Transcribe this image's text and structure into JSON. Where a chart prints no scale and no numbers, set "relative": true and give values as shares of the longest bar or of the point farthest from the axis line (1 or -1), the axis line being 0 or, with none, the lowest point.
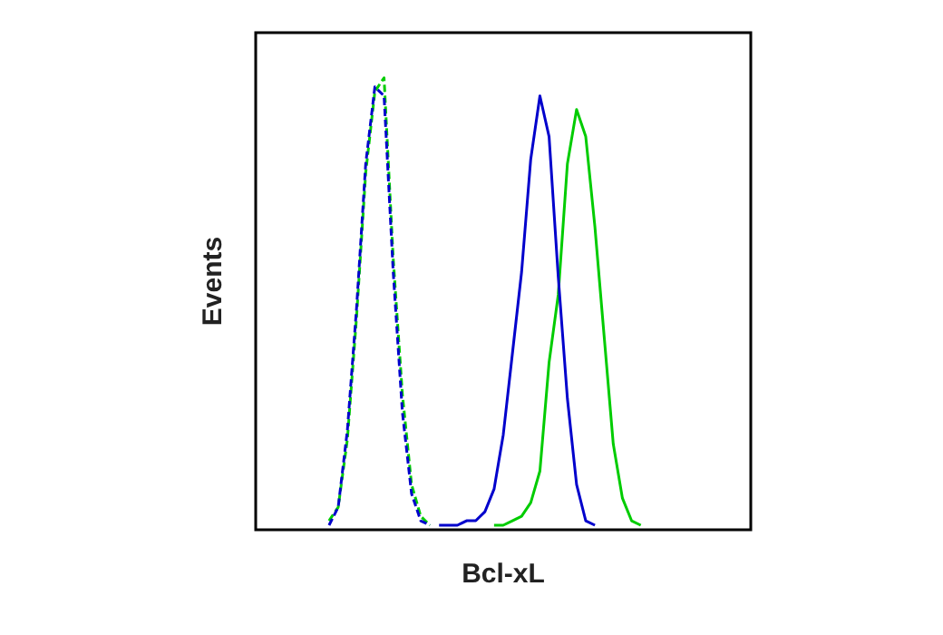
{
  "chart_data": {
    "type": "line",
    "xlabel": "Bcl-xL",
    "ylabel": "Events",
    "relative": true,
    "legend": false,
    "grid": false,
    "marker": "none",
    "categories": [
      null,
      null,
      null,
      null,
      null,
      null,
      null,
      null,
      null,
      null,
      null,
      null,
      null,
      null,
      null,
      null,
      null,
      null,
      null,
      null,
      null,
      null,
      null,
      null,
      null,
      null,
      null,
      null,
      null,
      null,
      null,
      null,
      null,
      null,
      null,
      null,
      null,
      null,
      null,
      null,
      null,
      null,
      null,
      null,
      null,
      null,
      null,
      null,
      null,
      null,
      null,
      null,
      null,
      null,
      null
    ],
    "series": [
      {
        "color": "#0000cc",
        "line_style": "dashed",
        "values": [
          null,
          null,
          null,
          null,
          null,
          null,
          null,
          null,
          0.01,
          0.05,
          0.22,
          0.49,
          0.81,
          0.98,
          0.96,
          0.57,
          0.26,
          0.08,
          0.02,
          0.01,
          null,
          null,
          null,
          null,
          null,
          null,
          null,
          null,
          null,
          null,
          null,
          null,
          null,
          null,
          null,
          null,
          null,
          null,
          null,
          null,
          null,
          null,
          null,
          null,
          null,
          null,
          null,
          null,
          null,
          null,
          null,
          null,
          null,
          null,
          null
        ]
      },
      {
        "color": "#00cc00",
        "line_style": "dashed",
        "values": [
          null,
          null,
          null,
          null,
          null,
          null,
          null,
          null,
          0.02,
          0.05,
          0.2,
          0.47,
          0.79,
          0.97,
          1,
          0.6,
          0.3,
          0.1,
          0.03,
          0.01,
          null,
          null,
          null,
          null,
          null,
          null,
          null,
          null,
          null,
          null,
          null,
          null,
          null,
          null,
          null,
          null,
          null,
          null,
          null,
          null,
          null,
          null,
          null,
          null,
          null,
          null,
          null,
          null,
          null,
          null,
          null,
          null,
          null,
          null,
          null
        ]
      },
      {
        "color": "#0000cc",
        "line_style": "solid",
        "values": [
          null,
          null,
          null,
          null,
          null,
          null,
          null,
          null,
          null,
          null,
          null,
          null,
          null,
          null,
          null,
          null,
          null,
          null,
          null,
          null,
          0.01,
          0.01,
          0.01,
          0.02,
          0.02,
          0.04,
          0.09,
          0.21,
          0.39,
          0.57,
          0.82,
          0.96,
          0.87,
          0.56,
          0.29,
          0.1,
          0.02,
          0.01,
          null,
          null,
          null,
          null,
          null,
          null,
          null,
          null,
          null,
          null,
          null,
          null,
          null,
          null,
          null,
          null,
          null
        ]
      },
      {
        "color": "#00cc00",
        "line_style": "solid",
        "values": [
          null,
          null,
          null,
          null,
          null,
          null,
          null,
          null,
          null,
          null,
          null,
          null,
          null,
          null,
          null,
          null,
          null,
          null,
          null,
          null,
          null,
          null,
          null,
          null,
          null,
          null,
          0.01,
          0.01,
          0.02,
          0.03,
          0.06,
          0.13,
          0.37,
          0.52,
          0.81,
          0.93,
          0.87,
          0.67,
          0.43,
          0.19,
          0.07,
          0.02,
          0.01,
          null,
          null,
          null,
          null,
          null,
          null,
          null,
          null,
          null,
          null,
          null,
          null
        ]
      }
    ]
  }
}
